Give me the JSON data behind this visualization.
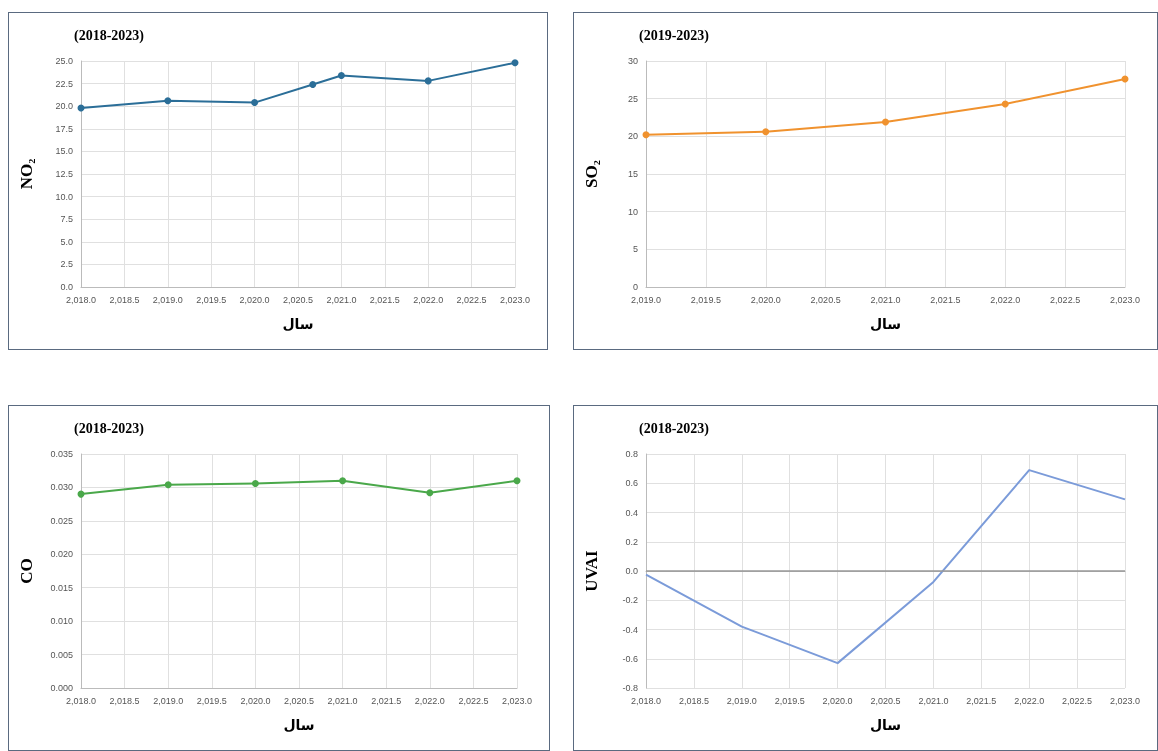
{
  "chart_data": [
    {
      "type": "line",
      "title": "(2018-2023)",
      "xlabel": "سال",
      "ylabel": "NO₂",
      "x": [
        2018,
        2019,
        2020,
        2020.67,
        2021,
        2022,
        2023
      ],
      "series": [
        {
          "color": "#2b6e98",
          "values": [
            19.8,
            20.6,
            20.4,
            22.4,
            23.4,
            22.8,
            24.8
          ]
        }
      ],
      "xlim": [
        2018,
        2023
      ],
      "xticks": [
        {
          "value": 2018,
          "label": "2,018.0"
        },
        {
          "value": 2018.5,
          "label": "2,018.5"
        },
        {
          "value": 2019,
          "label": "2,019.0"
        },
        {
          "value": 2019.5,
          "label": "2,019.5"
        },
        {
          "value": 2020,
          "label": "2,020.0"
        },
        {
          "value": 2020.5,
          "label": "2,020.5"
        },
        {
          "value": 2021,
          "label": "2,021.0"
        },
        {
          "value": 2021.5,
          "label": "2,021.5"
        },
        {
          "value": 2022,
          "label": "2,022.0"
        },
        {
          "value": 2022.5,
          "label": "2,022.5"
        },
        {
          "value": 2023,
          "label": "2,023.0"
        }
      ],
      "ylim": [
        0,
        25
      ],
      "yticks": [
        {
          "value": 0,
          "label": "0.0"
        },
        2.5,
        {
          "value": 5,
          "label": "5.0"
        },
        7.5,
        {
          "value": 10,
          "label": "10.0"
        },
        12.5,
        {
          "value": 15,
          "label": "15.0"
        },
        17.5,
        {
          "value": 20,
          "label": "20.0"
        },
        22.5,
        {
          "value": 25,
          "label": "25.0"
        }
      ],
      "grid": true,
      "marker": "circle"
    },
    {
      "type": "line",
      "title": "(2019-2023)",
      "xlabel": "سال",
      "ylabel": "SO₂",
      "x": [
        2019,
        2020,
        2021,
        2022,
        2023
      ],
      "series": [
        {
          "color": "#f0922e",
          "values": [
            20.2,
            20.6,
            21.9,
            24.3,
            27.6
          ]
        }
      ],
      "xlim": [
        2019,
        2023
      ],
      "xticks": [
        {
          "value": 2019,
          "label": "2,019.0"
        },
        {
          "value": 2019.5,
          "label": "2,019.5"
        },
        {
          "value": 2020,
          "label": "2,020.0"
        },
        {
          "value": 2020.5,
          "label": "2,020.5"
        },
        {
          "value": 2021,
          "label": "2,021.0"
        },
        {
          "value": 2021.5,
          "label": "2,021.5"
        },
        {
          "value": 2022,
          "label": "2,022.0"
        },
        {
          "value": 2022.5,
          "label": "2,022.5"
        },
        {
          "value": 2023,
          "label": "2,023.0"
        }
      ],
      "ylim": [
        0,
        30
      ],
      "yticks": [
        0,
        5,
        10,
        15,
        20,
        25,
        30
      ],
      "grid": true,
      "marker": "circle"
    },
    {
      "type": "line",
      "title": "(2018-2023)",
      "xlabel": "سال",
      "ylabel": "CO",
      "x": [
        2018,
        2019,
        2020,
        2021,
        2022,
        2023
      ],
      "series": [
        {
          "color": "#4aa84a",
          "values": [
            0.029,
            0.0304,
            0.0306,
            0.031,
            0.0292,
            0.031
          ]
        }
      ],
      "xlim": [
        2018,
        2023
      ],
      "xticks": [
        {
          "value": 2018,
          "label": "2,018.0"
        },
        {
          "value": 2018.5,
          "label": "2,018.5"
        },
        {
          "value": 2019,
          "label": "2,019.0"
        },
        {
          "value": 2019.5,
          "label": "2,019.5"
        },
        {
          "value": 2020,
          "label": "2,020.0"
        },
        {
          "value": 2020.5,
          "label": "2,020.5"
        },
        {
          "value": 2021,
          "label": "2,021.0"
        },
        {
          "value": 2021.5,
          "label": "2,021.5"
        },
        {
          "value": 2022,
          "label": "2,022.0"
        },
        {
          "value": 2022.5,
          "label": "2,022.5"
        },
        {
          "value": 2023,
          "label": "2,023.0"
        }
      ],
      "ylim": [
        0,
        0.035
      ],
      "yticks": [
        {
          "value": 0,
          "label": "0.000"
        },
        {
          "value": 0.005,
          "label": "0.005"
        },
        {
          "value": 0.01,
          "label": "0.010"
        },
        {
          "value": 0.015,
          "label": "0.015"
        },
        {
          "value": 0.02,
          "label": "0.020"
        },
        {
          "value": 0.025,
          "label": "0.025"
        },
        {
          "value": 0.03,
          "label": "0.030"
        },
        {
          "value": 0.035,
          "label": "0.035"
        }
      ],
      "grid": true,
      "marker": "circle"
    },
    {
      "type": "line",
      "title": "(2018-2023)",
      "xlabel": "سال",
      "ylabel": "UVAI",
      "x": [
        2018,
        2019,
        2020,
        2021,
        2022,
        2023
      ],
      "series": [
        {
          "color": "#7b9bd9",
          "values": [
            -0.025,
            -0.38,
            -0.63,
            -0.075,
            0.69,
            0.49
          ]
        }
      ],
      "xlim": [
        2018,
        2023
      ],
      "xticks": [
        {
          "value": 2018,
          "label": "2,018.0"
        },
        {
          "value": 2018.5,
          "label": "2,018.5"
        },
        {
          "value": 2019,
          "label": "2,019.0"
        },
        {
          "value": 2019.5,
          "label": "2,019.5"
        },
        {
          "value": 2020,
          "label": "2,020.0"
        },
        {
          "value": 2020.5,
          "label": "2,020.5"
        },
        {
          "value": 2021,
          "label": "2,021.0"
        },
        {
          "value": 2021.5,
          "label": "2,021.5"
        },
        {
          "value": 2022,
          "label": "2,022.0"
        },
        {
          "value": 2022.5,
          "label": "2,022.5"
        },
        {
          "value": 2023,
          "label": "2,023.0"
        }
      ],
      "ylim": [
        -0.8,
        0.8
      ],
      "yticks": [
        -0.8,
        -0.6,
        -0.4,
        -0.2,
        {
          "value": 0,
          "label": "0.0"
        },
        0.2,
        0.4,
        0.6,
        0.8
      ],
      "ref_lines": [
        {
          "axis": "y",
          "value": 0,
          "color": "#999999"
        }
      ],
      "grid": true,
      "marker": "none"
    }
  ]
}
